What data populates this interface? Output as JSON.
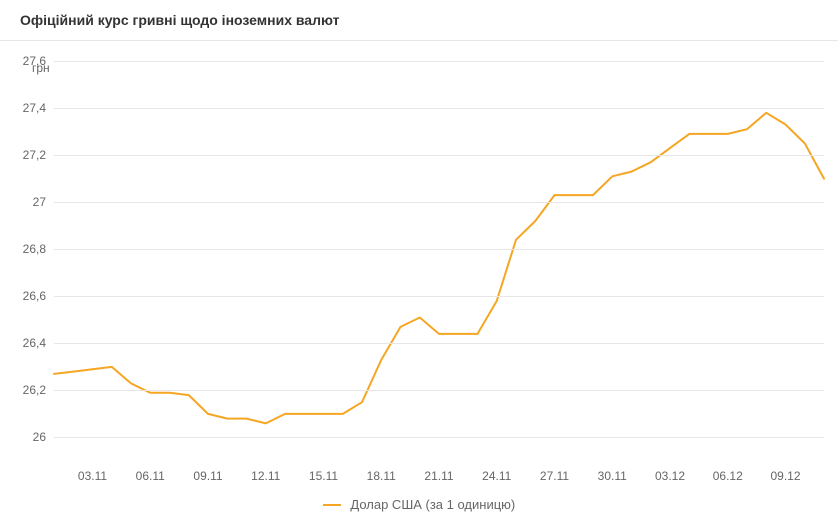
{
  "title": "Офіційний курс гривні щодо іноземних валют",
  "chart": {
    "type": "line",
    "y_unit_label": "грн",
    "line_color": "#f5a623",
    "line_width": 2,
    "grid_color": "#e6e6e6",
    "baseline_color": "#cccccc",
    "background_color": "#ffffff",
    "text_color": "#666666",
    "title_color": "#333333",
    "title_fontsize": 14,
    "tick_fontsize": 12,
    "ylim": [
      25.9,
      27.6
    ],
    "yticks": [
      26,
      26.2,
      26.4,
      26.6,
      26.8,
      27,
      27.2,
      27.4,
      27.6
    ],
    "ytick_labels": [
      "26",
      "26,2",
      "26,4",
      "26,6",
      "26,8",
      "27",
      "27,2",
      "27,4",
      "27,6"
    ],
    "xticks": [
      "03.11",
      "06.11",
      "09.11",
      "12.11",
      "15.11",
      "18.11",
      "21.11",
      "24.11",
      "27.11",
      "30.11",
      "03.12",
      "06.12",
      "09.12"
    ],
    "x_count": 41,
    "x_tick_indices": [
      2,
      5,
      8,
      11,
      14,
      17,
      20,
      23,
      26,
      29,
      32,
      35,
      38
    ],
    "values": [
      26.27,
      26.28,
      26.29,
      26.3,
      26.23,
      26.19,
      26.19,
      26.18,
      26.1,
      26.08,
      26.08,
      26.06,
      26.1,
      26.1,
      26.1,
      26.1,
      26.15,
      26.33,
      26.47,
      26.51,
      26.44,
      26.44,
      26.44,
      26.58,
      26.84,
      26.92,
      27.03,
      27.03,
      27.03,
      27.11,
      27.13,
      27.17,
      27.23,
      27.29,
      27.29,
      27.29,
      27.31,
      27.38,
      27.33,
      27.25,
      27.1
    ],
    "legend": {
      "label": "Долар США (за 1 одиницю)",
      "color": "#f5a623"
    }
  }
}
